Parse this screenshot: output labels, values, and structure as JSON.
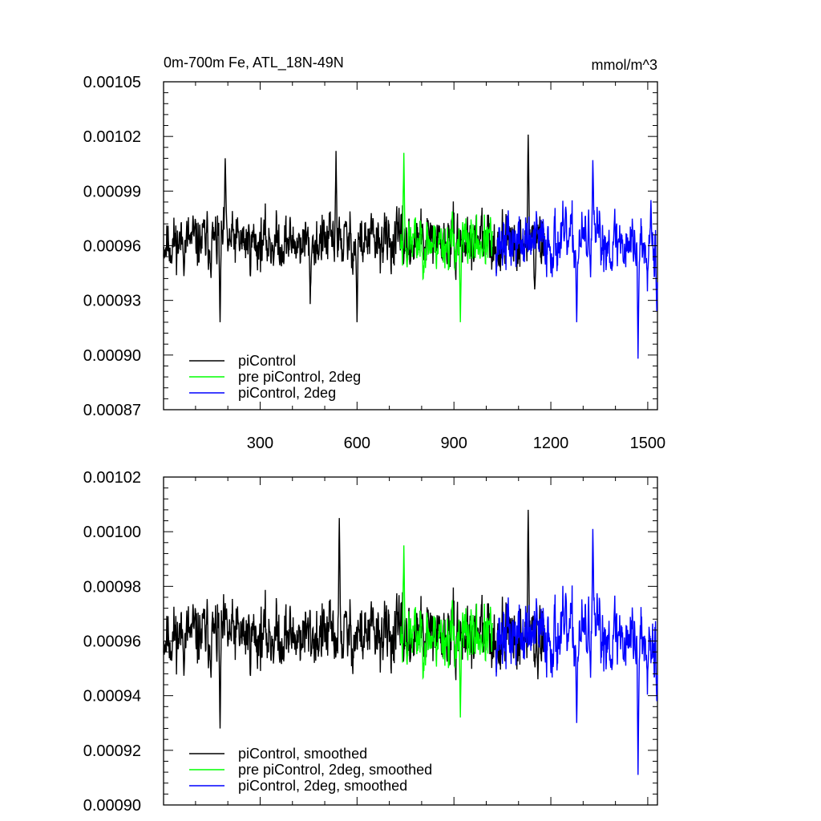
{
  "chart_data": [
    {
      "type": "line",
      "title": "0m-700m Fe, ATL_18N-49N",
      "units": "mmol/m^3",
      "xlim": [
        1,
        1530
      ],
      "ylim": [
        0.00087,
        0.00105
      ],
      "x_ticks": [
        300,
        600,
        900,
        1200,
        1500
      ],
      "x_tick_labels": [
        "300",
        "600",
        "900",
        "1200",
        "1500"
      ],
      "y_ticks": [
        0.00087,
        0.0009,
        0.00093,
        0.00096,
        0.00099,
        0.00102,
        0.00105
      ],
      "y_tick_labels": [
        "0.00087",
        "0.00090",
        "0.00093",
        "0.00096",
        "0.00099",
        "0.00102",
        "0.00105"
      ],
      "legend_position": "bottom-left",
      "series": [
        {
          "name": "piControl",
          "color": "#000000",
          "x_start": 1,
          "x_end": 1180,
          "mean": 0.000962,
          "amplitude": 1.4e-05,
          "seed": 11,
          "extremes": [
            [
              176,
              0.000918
            ],
            [
              192,
              0.001008
            ],
            [
              455,
              0.000928
            ],
            [
              535,
              0.001012
            ],
            [
              600,
              0.000918
            ],
            [
              1130,
              0.001021
            ],
            [
              1150,
              0.000936
            ]
          ]
        },
        {
          "name": "pre piControl, 2deg",
          "color": "#00ff00",
          "x_start": 735,
          "x_end": 1020,
          "mean": 0.000962,
          "amplitude": 1.3e-05,
          "seed": 23,
          "extremes": [
            [
              745,
              0.001011
            ],
            [
              920,
              0.000918
            ]
          ]
        },
        {
          "name": "piControl, 2deg",
          "color": "#0000ff",
          "x_start": 1030,
          "x_end": 1530,
          "mean": 0.000962,
          "amplitude": 1.5e-05,
          "seed": 37,
          "extremes": [
            [
              1280,
              0.000918
            ],
            [
              1330,
              0.001007
            ],
            [
              1470,
              0.000898
            ],
            [
              1510,
              0.000985
            ],
            [
              1528,
              0.000924
            ]
          ]
        }
      ]
    },
    {
      "type": "line",
      "title": "",
      "units": "",
      "xlim": [
        1,
        1530
      ],
      "ylim": [
        0.0009,
        0.00102
      ],
      "x_ticks": [
        300,
        600,
        900,
        1200,
        1500
      ],
      "x_tick_labels": [],
      "y_ticks": [
        0.0009,
        0.00092,
        0.00094,
        0.00096,
        0.00098,
        0.001,
        0.00102
      ],
      "y_tick_labels": [
        "0.00090",
        "0.00092",
        "0.00094",
        "0.00096",
        "0.00098",
        "0.00100",
        "0.00102"
      ],
      "legend_position": "bottom-left",
      "series": [
        {
          "name": "piControl, smoothed",
          "color": "#000000",
          "x_start": 1,
          "x_end": 1180,
          "mean": 0.000962,
          "amplitude": 1.1e-05,
          "seed": 11,
          "extremes": [
            [
              176,
              0.000928
            ],
            [
              545,
              0.001005
            ],
            [
              1130,
              0.001008
            ],
            [
              1160,
              0.000946
            ]
          ]
        },
        {
          "name": "pre piControl, 2deg, smoothed",
          "color": "#00ff00",
          "x_start": 735,
          "x_end": 1020,
          "mean": 0.000962,
          "amplitude": 1e-05,
          "seed": 23,
          "extremes": [
            [
              745,
              0.000995
            ],
            [
              920,
              0.000932
            ]
          ]
        },
        {
          "name": "piControl, 2deg, smoothed",
          "color": "#0000ff",
          "x_start": 1030,
          "x_end": 1530,
          "mean": 0.000962,
          "amplitude": 1.2e-05,
          "seed": 37,
          "extremes": [
            [
              1280,
              0.00093
            ],
            [
              1330,
              0.001001
            ],
            [
              1470,
              0.000911
            ],
            [
              1528,
              0.000938
            ]
          ]
        }
      ]
    }
  ]
}
